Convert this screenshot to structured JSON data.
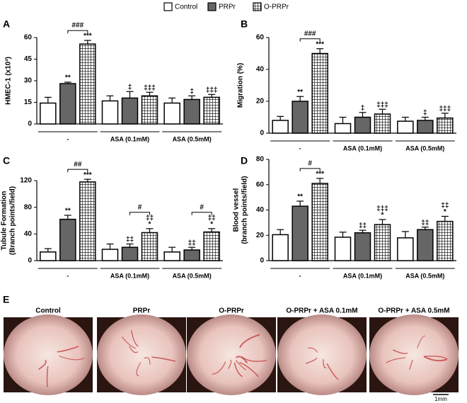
{
  "chart_data": [
    {
      "type": "bar",
      "panel": "A",
      "ylabel": "HMEC-1 (x10³)",
      "categories": [
        "-",
        "ASA (0.1mM)",
        "ASA (0.5mM)"
      ],
      "ylim": [
        0,
        60
      ],
      "yticks": [
        0,
        15,
        30,
        45,
        60
      ],
      "series": [
        {
          "name": "Control",
          "color": "#ffffff",
          "values": [
            14.5,
            16,
            14.5
          ],
          "errors": [
            4,
            3.5,
            3.5
          ]
        },
        {
          "name": "PRPr",
          "color": "#666666",
          "values": [
            28,
            18,
            17
          ],
          "errors": [
            1,
            4.5,
            2.5
          ],
          "marks": [
            [
              "**"
            ],
            [
              "‡"
            ],
            [
              "‡"
            ]
          ]
        },
        {
          "name": "O-PRPr",
          "color": "#000000",
          "pattern": "grid",
          "values": [
            55.5,
            19.5,
            18.5
          ],
          "errors": [
            2.5,
            2.5,
            2
          ],
          "marks": [
            [
              "***"
            ],
            [
              "‡‡‡"
            ],
            [
              "‡‡‡"
            ]
          ]
        }
      ],
      "brackets": [
        {
          "category": "-",
          "text": "###"
        }
      ]
    },
    {
      "type": "bar",
      "panel": "B",
      "ylabel": "Migration (%)",
      "categories": [
        "-",
        "ASA (0.1mM)",
        "ASA (0.5mM)"
      ],
      "ylim": [
        0,
        60
      ],
      "yticks": [
        0,
        20,
        40,
        60
      ],
      "series": [
        {
          "name": "Control",
          "color": "#ffffff",
          "values": [
            8,
            6,
            7.5
          ],
          "errors": [
            2.5,
            4,
            2.5
          ]
        },
        {
          "name": "PRPr",
          "color": "#666666",
          "values": [
            20,
            10,
            8
          ],
          "errors": [
            3,
            3,
            2
          ],
          "marks": [
            [
              "**"
            ],
            [
              "‡"
            ],
            [
              "‡"
            ]
          ]
        },
        {
          "name": "O-PRPr",
          "color": "#000000",
          "pattern": "grid",
          "values": [
            50,
            12,
            9.5
          ],
          "errors": [
            3,
            3,
            3
          ],
          "marks": [
            [
              "***"
            ],
            [
              "‡‡‡"
            ],
            [
              "‡‡‡"
            ]
          ]
        }
      ],
      "brackets": [
        {
          "category": "-",
          "text": "###"
        }
      ]
    },
    {
      "type": "bar",
      "panel": "C",
      "ylabel": [
        "Tubule Formation",
        "(Branch points/field)"
      ],
      "categories": [
        "-",
        "ASA (0.1mM)",
        "ASA (0.5mM)"
      ],
      "ylim": [
        0,
        120
      ],
      "yticks": [
        0,
        40,
        80,
        120
      ],
      "series": [
        {
          "name": "Control",
          "color": "#ffffff",
          "values": [
            13,
            17,
            13
          ],
          "errors": [
            5,
            8,
            7
          ]
        },
        {
          "name": "PRPr",
          "color": "#666666",
          "values": [
            62,
            20,
            16
          ],
          "errors": [
            6,
            5,
            4
          ],
          "marks": [
            [
              "**"
            ],
            [
              "‡‡"
            ],
            [
              "‡‡"
            ]
          ]
        },
        {
          "name": "O-PRPr",
          "color": "#000000",
          "pattern": "grid",
          "values": [
            118,
            42,
            43
          ],
          "errors": [
            4,
            6,
            5
          ],
          "marks": [
            [
              "***"
            ],
            [
              "‡‡",
              "*"
            ],
            [
              "‡‡",
              "*"
            ]
          ]
        }
      ],
      "brackets": [
        {
          "category": "-",
          "text": "##"
        },
        {
          "category": "ASA (0.1mM)",
          "text": "#"
        },
        {
          "category": "ASA (0.5mM)",
          "text": "#"
        }
      ]
    },
    {
      "type": "bar",
      "panel": "D",
      "ylabel": [
        "Blood vessel",
        "(branch points/field)"
      ],
      "categories": [
        "-",
        "ASA (0.1mM)",
        "ASA (0.5mM)"
      ],
      "ylim": [
        0,
        80
      ],
      "yticks": [
        0,
        20,
        40,
        60,
        80
      ],
      "series": [
        {
          "name": "Control",
          "color": "#ffffff",
          "values": [
            20.5,
            18.5,
            18
          ],
          "errors": [
            4,
            4,
            5
          ]
        },
        {
          "name": "PRPr",
          "color": "#666666",
          "values": [
            43,
            22,
            24.5
          ],
          "errors": [
            4,
            2,
            2
          ],
          "marks": [
            [
              "**"
            ],
            [
              "‡‡"
            ],
            [
              "‡‡"
            ]
          ]
        },
        {
          "name": "O-PRPr",
          "color": "#000000",
          "pattern": "grid",
          "values": [
            61,
            28.5,
            31
          ],
          "errors": [
            4,
            4,
            4
          ],
          "marks": [
            [
              "***"
            ],
            [
              "‡‡‡",
              "*"
            ],
            [
              "‡‡",
              "*"
            ]
          ]
        }
      ],
      "brackets": [
        {
          "category": "-",
          "text": "#"
        }
      ]
    }
  ],
  "image_panel": {
    "panel": "E",
    "labels": [
      "Control",
      "PRPr",
      "O-PRPr",
      "O-PRPr + ASA 0.1mM",
      "O-PRPr + ASA 0.5mM"
    ],
    "scale_bar": "1mm"
  }
}
